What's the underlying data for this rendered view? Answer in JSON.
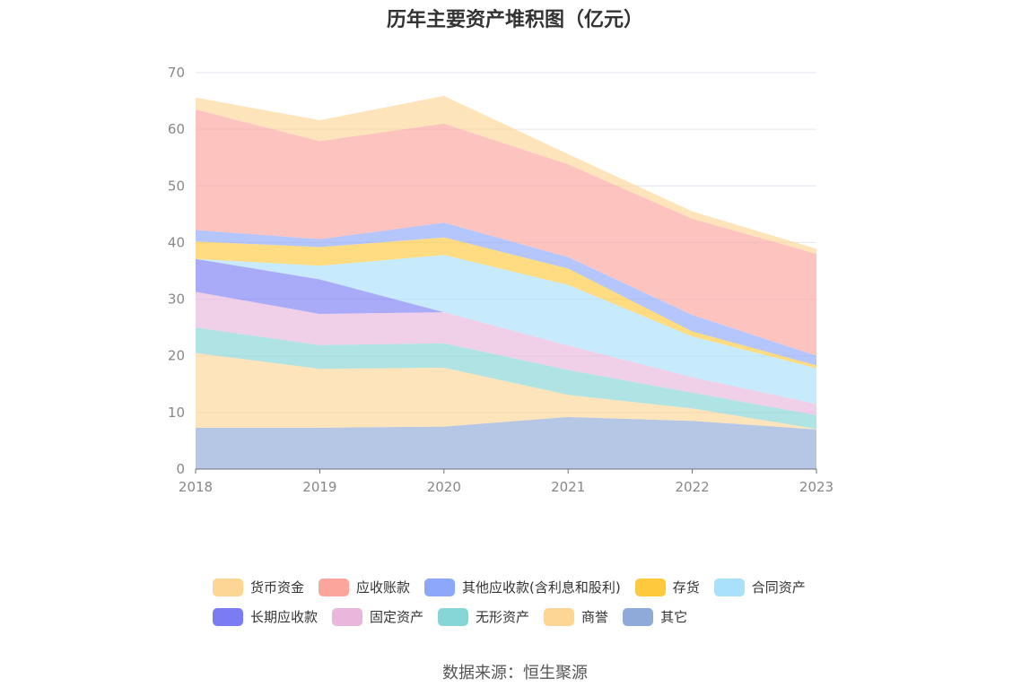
{
  "chart_data": {
    "type": "area",
    "stacked": true,
    "title": "历年主要资产堆积图（亿元）",
    "x": [
      "2018",
      "2019",
      "2020",
      "2021",
      "2022",
      "2023"
    ],
    "ylim": [
      0,
      70
    ],
    "yticks": [
      0,
      10,
      20,
      30,
      40,
      50,
      60,
      70
    ],
    "grid": true,
    "legend_position": "bottom",
    "series": [
      {
        "name": "其它",
        "color": "#8fa9d8",
        "values": [
          7.3,
          7.3,
          7.5,
          9.2,
          8.5,
          7.0
        ]
      },
      {
        "name": "商誉",
        "color": "#fdd695",
        "values": [
          13.2,
          10.4,
          10.4,
          3.9,
          2.2,
          0.1
        ]
      },
      {
        "name": "无形资产",
        "color": "#86d6d6",
        "values": [
          4.5,
          4.2,
          4.3,
          4.4,
          2.8,
          2.4
        ]
      },
      {
        "name": "固定资产",
        "color": "#e8b7db",
        "values": [
          6.3,
          5.5,
          5.5,
          4.3,
          2.7,
          2.0
        ]
      },
      {
        "name": "长期应收款",
        "color": "#7b7cf4",
        "values": [
          5.8,
          6.1,
          0,
          0,
          0,
          0
        ]
      },
      {
        "name": "合同资产",
        "color": "#a9e1fb",
        "values": [
          0,
          2.4,
          10.1,
          10.7,
          7.2,
          6.3
        ]
      },
      {
        "name": "存货",
        "color": "#ffc93d",
        "values": [
          3.1,
          3.3,
          3.1,
          2.9,
          0.9,
          0.5
        ]
      },
      {
        "name": "其他应收款(含利息和股利)",
        "color": "#8da7fa",
        "values": [
          2.0,
          1.4,
          2.6,
          2.0,
          2.9,
          1.7
        ]
      },
      {
        "name": "应收账款",
        "color": "#fca59d",
        "values": [
          21.3,
          17.3,
          17.5,
          16.4,
          17.0,
          18.0
        ]
      },
      {
        "name": "货币资金",
        "color": "#fdd695",
        "values": [
          2.1,
          3.7,
          4.9,
          1.8,
          1.3,
          0.9
        ]
      }
    ]
  },
  "legend": {
    "row1": [
      {
        "label": "货币资金",
        "color": "#fdd695"
      },
      {
        "label": "应收账款",
        "color": "#fca59d"
      },
      {
        "label": "其他应收款(含利息和股利)",
        "color": "#8da7fa"
      },
      {
        "label": "存货",
        "color": "#ffc93d"
      },
      {
        "label": "合同资产",
        "color": "#a9e1fb"
      }
    ],
    "row2": [
      {
        "label": "长期应收款",
        "color": "#7b7cf4"
      },
      {
        "label": "固定资产",
        "color": "#e8b7db"
      },
      {
        "label": "无形资产",
        "color": "#86d6d6"
      },
      {
        "label": "商誉",
        "color": "#fdd695"
      },
      {
        "label": "其它",
        "color": "#8fa9d8"
      }
    ]
  },
  "source_text": "数据来源：恒生聚源"
}
